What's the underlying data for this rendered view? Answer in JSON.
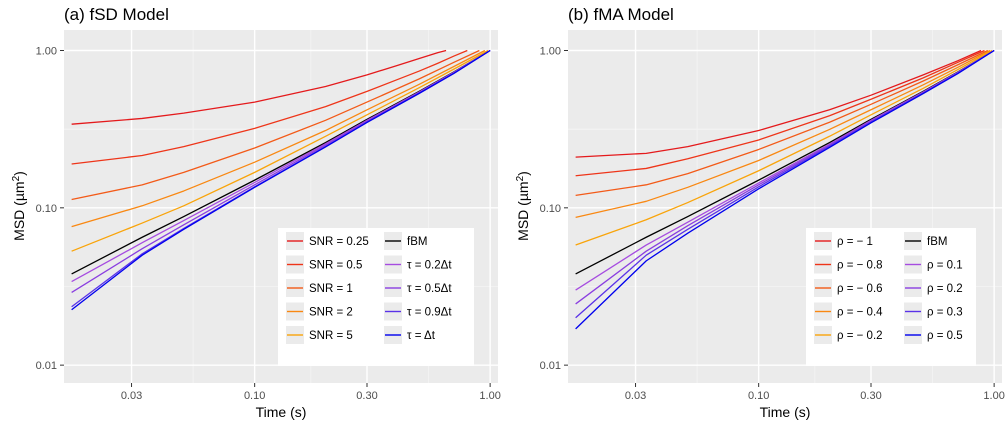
{
  "chart_data": [
    {
      "type": "line",
      "title": "(a) fSD Model",
      "xlabel": "Time (s)",
      "ylabel_main": "MSD (",
      "ylabel_mu": "µm",
      "ylabel_sup": "2",
      "ylabel_close": ")",
      "x_scale": "log",
      "y_scale": "log",
      "xlim": [
        0.0155,
        1.08
      ],
      "ylim": [
        0.0077,
        1.35
      ],
      "x_ticks": [
        0.03,
        0.1,
        0.3,
        1.0
      ],
      "x_tick_labels": [
        "0.03",
        "0.10",
        "0.30",
        "1.00"
      ],
      "y_ticks": [
        0.01,
        0.1,
        1.0
      ],
      "y_tick_labels": [
        "0.01",
        "0.10",
        "1.00"
      ],
      "grid": true,
      "legend_position": "bottom-right",
      "legend_layout": {
        "rows": 5,
        "cols": 2
      },
      "series": [
        {
          "name": "SNR = 0.25",
          "color": "#e41a1c",
          "x": [
            0.0167,
            0.0333,
            0.05,
            0.1,
            0.2,
            0.3,
            0.4,
            0.5,
            0.6,
            0.65
          ],
          "y": [
            0.34,
            0.37,
            0.4,
            0.47,
            0.59,
            0.7,
            0.8,
            0.89,
            0.97,
            1.0
          ]
        },
        {
          "name": "SNR = 0.5",
          "color": "#ee3519",
          "x": [
            0.0167,
            0.0333,
            0.05,
            0.1,
            0.2,
            0.3,
            0.4,
            0.5,
            0.6,
            0.7,
            0.8
          ],
          "y": [
            0.19,
            0.215,
            0.245,
            0.32,
            0.44,
            0.55,
            0.65,
            0.74,
            0.83,
            0.92,
            1.0
          ]
        },
        {
          "name": "SNR = 1",
          "color": "#f35a18",
          "x": [
            0.0167,
            0.0333,
            0.05,
            0.1,
            0.2,
            0.3,
            0.5,
            0.7,
            0.9
          ],
          "y": [
            0.113,
            0.14,
            0.168,
            0.24,
            0.36,
            0.47,
            0.66,
            0.84,
            1.0
          ]
        },
        {
          "name": "SNR = 2",
          "color": "#f98812",
          "x": [
            0.0167,
            0.0333,
            0.05,
            0.1,
            0.2,
            0.3,
            0.5,
            0.7,
            0.95
          ],
          "y": [
            0.076,
            0.103,
            0.128,
            0.195,
            0.31,
            0.42,
            0.61,
            0.79,
            1.0
          ]
        },
        {
          "name": "SNR = 5",
          "color": "#f9a40a",
          "x": [
            0.0167,
            0.0333,
            0.05,
            0.1,
            0.2,
            0.3,
            0.5,
            0.7,
            0.98
          ],
          "y": [
            0.053,
            0.08,
            0.103,
            0.168,
            0.285,
            0.39,
            0.58,
            0.76,
            1.0
          ]
        },
        {
          "name": "fBM",
          "color": "#000000",
          "x": [
            0.0167,
            0.0333,
            0.05,
            0.1,
            0.2,
            0.3,
            0.5,
            0.7,
            1.0
          ],
          "y": [
            0.038,
            0.065,
            0.088,
            0.15,
            0.26,
            0.365,
            0.55,
            0.73,
            1.0
          ]
        },
        {
          "name": "τ = 0.2Δt",
          "color": "#a64ce0",
          "x": [
            0.0167,
            0.0333,
            0.05,
            0.1,
            0.2,
            0.3,
            0.5,
            0.7,
            1.0
          ],
          "y": [
            0.034,
            0.06,
            0.083,
            0.145,
            0.255,
            0.36,
            0.545,
            0.725,
            1.0
          ]
        },
        {
          "name": "τ = 0.5Δt",
          "color": "#8a3ee0",
          "x": [
            0.0167,
            0.0333,
            0.05,
            0.1,
            0.2,
            0.3,
            0.5,
            0.7,
            1.0
          ],
          "y": [
            0.029,
            0.055,
            0.078,
            0.14,
            0.25,
            0.355,
            0.54,
            0.72,
            1.0
          ]
        },
        {
          "name": "τ = 0.9Δt",
          "color": "#5a32e8",
          "x": [
            0.0167,
            0.0333,
            0.05,
            0.1,
            0.2,
            0.3,
            0.5,
            0.7,
            1.0
          ],
          "y": [
            0.0235,
            0.051,
            0.074,
            0.136,
            0.245,
            0.35,
            0.535,
            0.715,
            1.0
          ]
        },
        {
          "name": "τ = Δt",
          "color": "#0000ee",
          "x": [
            0.0167,
            0.0333,
            0.05,
            0.1,
            0.2,
            0.3,
            0.5,
            0.7,
            1.0
          ],
          "y": [
            0.0225,
            0.05,
            0.073,
            0.135,
            0.244,
            0.349,
            0.534,
            0.714,
            1.0
          ]
        }
      ]
    },
    {
      "type": "line",
      "title": "(b) fMA Model",
      "xlabel": "Time (s)",
      "ylabel_main": "MSD (",
      "ylabel_mu": "µm",
      "ylabel_sup": "2",
      "ylabel_close": ")",
      "x_scale": "log",
      "y_scale": "log",
      "xlim": [
        0.0155,
        1.08
      ],
      "ylim": [
        0.0077,
        1.35
      ],
      "x_ticks": [
        0.03,
        0.1,
        0.3,
        1.0
      ],
      "x_tick_labels": [
        "0.03",
        "0.10",
        "0.30",
        "1.00"
      ],
      "y_ticks": [
        0.01,
        0.1,
        1.0
      ],
      "y_tick_labels": [
        "0.01",
        "0.10",
        "1.00"
      ],
      "grid": true,
      "legend_position": "bottom-right",
      "legend_layout": {
        "rows": 5,
        "cols": 2
      },
      "series": [
        {
          "name": "ρ = − 1",
          "color": "#e41a1c",
          "x": [
            0.0167,
            0.0333,
            0.05,
            0.1,
            0.2,
            0.3,
            0.5,
            0.7,
            0.88
          ],
          "y": [
            0.21,
            0.222,
            0.245,
            0.31,
            0.42,
            0.52,
            0.7,
            0.86,
            1.0
          ]
        },
        {
          "name": "ρ = − 0.8",
          "color": "#ee3519",
          "x": [
            0.0167,
            0.0333,
            0.05,
            0.1,
            0.2,
            0.3,
            0.5,
            0.7,
            0.91
          ],
          "y": [
            0.16,
            0.178,
            0.205,
            0.27,
            0.385,
            0.49,
            0.67,
            0.84,
            1.0
          ]
        },
        {
          "name": "ρ = − 0.6",
          "color": "#f35a18",
          "x": [
            0.0167,
            0.0333,
            0.05,
            0.1,
            0.2,
            0.3,
            0.5,
            0.7,
            0.94
          ],
          "y": [
            0.12,
            0.14,
            0.165,
            0.235,
            0.35,
            0.455,
            0.64,
            0.81,
            1.0
          ]
        },
        {
          "name": "ρ = − 0.4",
          "color": "#f98812",
          "x": [
            0.0167,
            0.0333,
            0.05,
            0.1,
            0.2,
            0.3,
            0.5,
            0.7,
            0.96
          ],
          "y": [
            0.087,
            0.11,
            0.135,
            0.2,
            0.315,
            0.42,
            0.605,
            0.78,
            1.0
          ]
        },
        {
          "name": "ρ = − 0.2",
          "color": "#f9a40a",
          "x": [
            0.0167,
            0.0333,
            0.05,
            0.1,
            0.2,
            0.3,
            0.5,
            0.7,
            0.98
          ],
          "y": [
            0.058,
            0.084,
            0.108,
            0.172,
            0.285,
            0.39,
            0.575,
            0.755,
            1.0
          ]
        },
        {
          "name": "fBM",
          "color": "#000000",
          "x": [
            0.0167,
            0.0333,
            0.05,
            0.1,
            0.2,
            0.3,
            0.5,
            0.7,
            1.0
          ],
          "y": [
            0.038,
            0.065,
            0.088,
            0.15,
            0.26,
            0.365,
            0.55,
            0.73,
            1.0
          ]
        },
        {
          "name": "ρ = 0.1",
          "color": "#a64ce0",
          "x": [
            0.0167,
            0.0333,
            0.05,
            0.1,
            0.2,
            0.3,
            0.5,
            0.7,
            1.0
          ],
          "y": [
            0.03,
            0.058,
            0.081,
            0.144,
            0.254,
            0.36,
            0.545,
            0.725,
            1.0
          ]
        },
        {
          "name": "ρ = 0.2",
          "color": "#8a3ee0",
          "x": [
            0.0167,
            0.0333,
            0.05,
            0.1,
            0.2,
            0.3,
            0.5,
            0.7,
            1.0
          ],
          "y": [
            0.0245,
            0.053,
            0.077,
            0.14,
            0.25,
            0.355,
            0.54,
            0.72,
            1.0
          ]
        },
        {
          "name": "ρ = 0.3",
          "color": "#5a32e8",
          "x": [
            0.0167,
            0.0333,
            0.05,
            0.1,
            0.2,
            0.3,
            0.5,
            0.7,
            1.0
          ],
          "y": [
            0.02,
            0.05,
            0.073,
            0.136,
            0.246,
            0.351,
            0.536,
            0.716,
            1.0
          ]
        },
        {
          "name": "ρ = 0.5",
          "color": "#0000ee",
          "x": [
            0.0167,
            0.0333,
            0.05,
            0.1,
            0.2,
            0.3,
            0.5,
            0.7,
            1.0
          ],
          "y": [
            0.017,
            0.046,
            0.069,
            0.132,
            0.242,
            0.347,
            0.532,
            0.712,
            1.0
          ]
        }
      ]
    }
  ]
}
